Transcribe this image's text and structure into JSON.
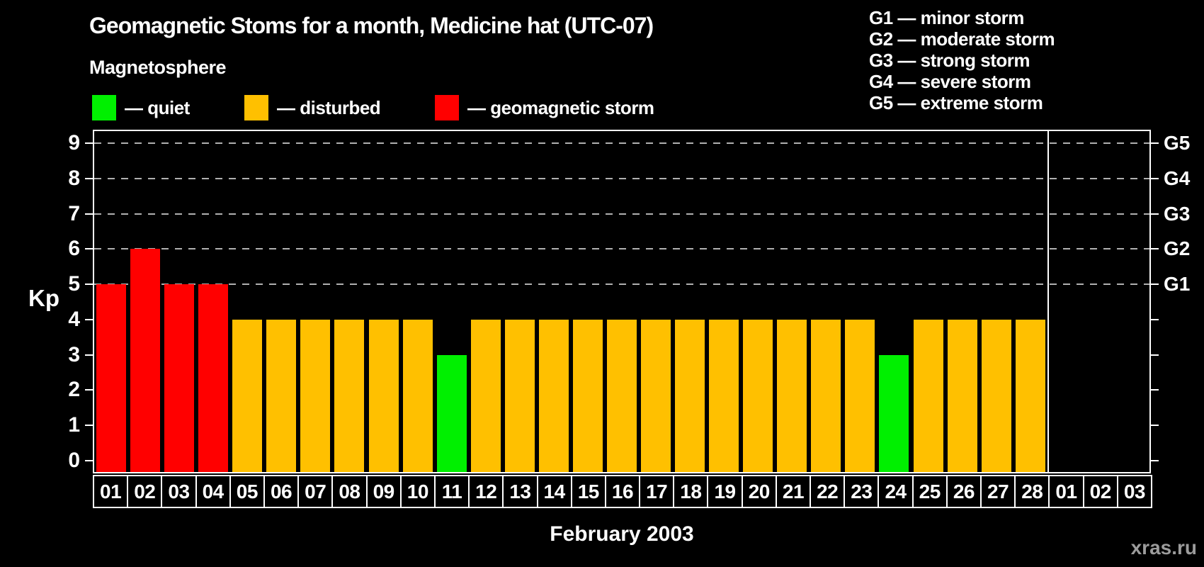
{
  "title": "Geomagnetic Stoms for a month, Medicine hat (UTC-07)",
  "watermark": "xras.ru",
  "legend": {
    "heading": "Magnetosphere",
    "items": [
      {
        "key": "quiet",
        "label": "— quiet",
        "color": "#00F000"
      },
      {
        "key": "disturbed",
        "label": "— disturbed",
        "color": "#FFC000"
      },
      {
        "key": "storm",
        "label": "— geomagnetic storm",
        "color": "#FF0000"
      }
    ]
  },
  "g_scale_legend": [
    "G1 — minor storm",
    "G2 — moderate storm",
    "G3 — strong storm",
    "G4 — severe storm",
    "G5 — extreme storm"
  ],
  "chart_data": {
    "type": "bar",
    "title": "Geomagnetic Stoms for a month, Medicine hat (UTC-07)",
    "xlabel": "February 2003",
    "ylabel": "Kp",
    "ylim": [
      0,
      9
    ],
    "y_ticks": [
      0,
      1,
      2,
      3,
      4,
      5,
      6,
      7,
      8,
      9
    ],
    "grid_kp_levels": [
      5,
      6,
      7,
      8,
      9
    ],
    "right_axis_labels": [
      {
        "label": "G1",
        "kp": 5
      },
      {
        "label": "G2",
        "kp": 6
      },
      {
        "label": "G3",
        "kp": 7
      },
      {
        "label": "G4",
        "kp": 8
      },
      {
        "label": "G5",
        "kp": 9
      }
    ],
    "categories": [
      "01",
      "02",
      "03",
      "04",
      "05",
      "06",
      "07",
      "08",
      "09",
      "10",
      "11",
      "12",
      "13",
      "14",
      "15",
      "16",
      "17",
      "18",
      "19",
      "20",
      "21",
      "22",
      "23",
      "24",
      "25",
      "26",
      "27",
      "28"
    ],
    "values": [
      5,
      6,
      5,
      5,
      4,
      4,
      4,
      4,
      4,
      4,
      3,
      4,
      4,
      4,
      4,
      4,
      4,
      4,
      4,
      4,
      4,
      4,
      4,
      3,
      4,
      4,
      4,
      4
    ],
    "next_month_categories": [
      "01",
      "02",
      "03"
    ],
    "status_colors": {
      "quiet": "#00F000",
      "disturbed": "#FFC000",
      "storm": "#FF0000"
    },
    "status_thresholds": {
      "quiet_kp_max": 3,
      "disturbed_kp_max": 4
    },
    "legend_position": "top",
    "grid": "dashed"
  }
}
